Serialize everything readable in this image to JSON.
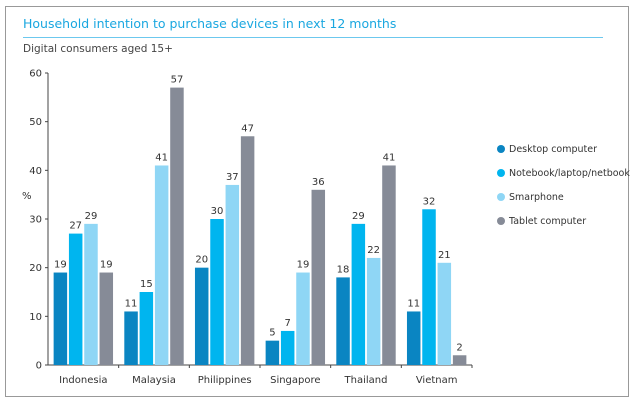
{
  "chart_data": {
    "type": "bar",
    "title": "Household intention to purchase devices in next 12 months",
    "subtitle": "Digital consumers aged 15+",
    "ylabel": "%",
    "xlabel": "",
    "ylim": [
      0,
      60
    ],
    "yticks": [
      0,
      10,
      20,
      30,
      40,
      50,
      60
    ],
    "grid": false,
    "legend_position": "right",
    "categories": [
      "Indonesia",
      "Malaysia",
      "Philippines",
      "Singapore",
      "Thailand",
      "Vietnam"
    ],
    "series": [
      {
        "name": "Desktop computer",
        "color": "#0a85c2",
        "values": [
          19,
          11,
          20,
          5,
          18,
          11
        ]
      },
      {
        "name": "Notebook/laptop/netbook",
        "color": "#00b5ef",
        "values": [
          27,
          15,
          30,
          7,
          29,
          32
        ]
      },
      {
        "name": "Smarphone",
        "color": "#8fd6f5",
        "values": [
          29,
          41,
          37,
          19,
          22,
          21
        ]
      },
      {
        "name": "Tablet computer",
        "color": "#868b97",
        "values": [
          19,
          57,
          47,
          36,
          41,
          2
        ]
      }
    ]
  }
}
